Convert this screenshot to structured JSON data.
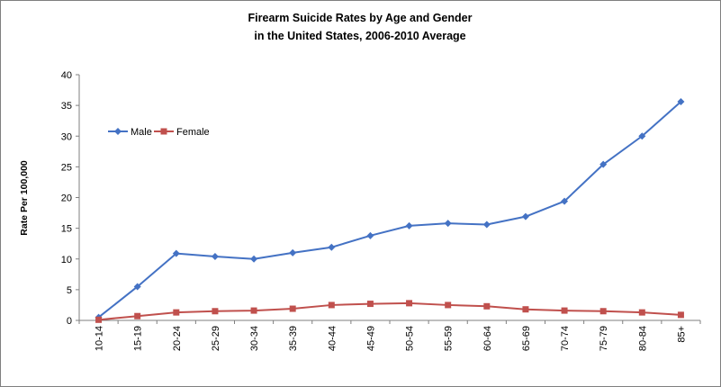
{
  "chart_data": {
    "type": "line",
    "title_line1": "Firearm Suicide Rates by Age and Gender",
    "title_line2": "in the United States, 2006-2010  Average",
    "xlabel": "",
    "ylabel": "Rate Per 100,000",
    "ylim": [
      0,
      40
    ],
    "yticks": [
      0,
      5,
      10,
      15,
      20,
      25,
      30,
      35,
      40
    ],
    "grid": false,
    "legend_position": "upper-left",
    "categories": [
      "10-14",
      "15-19",
      "20-24",
      "25-29",
      "30-34",
      "35-39",
      "40-44",
      "45-49",
      "50-54",
      "55-59",
      "60-64",
      "65-69",
      "70-74",
      "75-79",
      "80-84",
      "85+"
    ],
    "series": [
      {
        "name": "Male",
        "color": "#4472c4",
        "marker": "diamond",
        "values": [
          0.5,
          5.5,
          10.9,
          10.4,
          10.0,
          11.0,
          11.9,
          13.8,
          15.4,
          15.8,
          15.6,
          16.9,
          19.4,
          25.4,
          30.0,
          35.6
        ]
      },
      {
        "name": "Female",
        "color": "#c0504d",
        "marker": "square",
        "values": [
          0.1,
          0.7,
          1.3,
          1.5,
          1.6,
          1.9,
          2.5,
          2.7,
          2.8,
          2.5,
          2.3,
          1.8,
          1.6,
          1.5,
          1.3,
          0.9
        ]
      }
    ]
  }
}
